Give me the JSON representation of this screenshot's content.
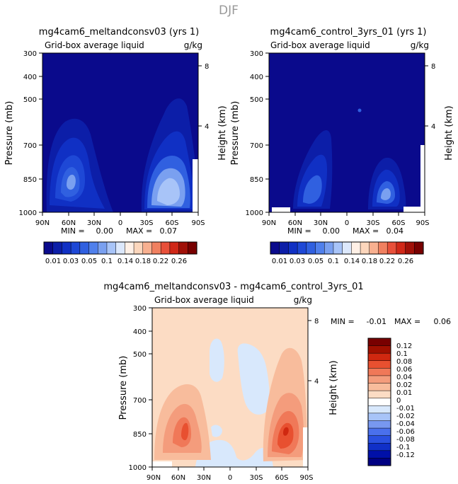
{
  "figure_title": "DJF",
  "colors": {
    "abs_fill": [
      "#0a0a8c",
      "#0c1ea8",
      "#1030c4",
      "#1e48d6",
      "#3060e0",
      "#5080ec",
      "#7aa0f0",
      "#a8c4f8",
      "#dce8fc",
      "#fff0e6",
      "#fcd6bc",
      "#f8b090",
      "#f08060",
      "#e8503a",
      "#d02818",
      "#a01008",
      "#780000"
    ],
    "diff_fill": [
      "#000082",
      "#0010a8",
      "#1030c8",
      "#2a50e0",
      "#4a70ec",
      "#7898f0",
      "#a8c4f8",
      "#d8e8fc",
      "#ffffff",
      "#fcdcc4",
      "#f8bc9c",
      "#f49c7c",
      "#f07858",
      "#e85030",
      "#d02810",
      "#a01000",
      "#780000"
    ]
  },
  "chart_data": [
    {
      "type": "contour",
      "title": "mg4cam6_meltandconsv03 (yrs 1)",
      "subtitle": "Grid-box average liquid",
      "units": "g/kg",
      "ylabel": "Pressure (mb)",
      "ylabel_right": "Height (km)",
      "x_ticks": [
        "90N",
        "60N",
        "30N",
        "0",
        "30S",
        "60S",
        "90S"
      ],
      "y_ticks": [
        "300",
        "400",
        "500",
        "700",
        "850",
        "1000"
      ],
      "right_ticks": [
        "8",
        "4"
      ],
      "min_label": "MIN =",
      "min_value": "0.00",
      "max_label": "MAX =",
      "max_value": "0.07",
      "colorbar_labels": [
        "0.01",
        "0.03",
        "0.05",
        "0.1",
        "0.14",
        "0.18",
        "0.22",
        "0.26"
      ]
    },
    {
      "type": "contour",
      "title": "mg4cam6_control_3yrs_01 (yrs 1)",
      "subtitle": "Grid-box average liquid",
      "units": "g/kg",
      "ylabel": "Pressure (mb)",
      "ylabel_right": "Height (km)",
      "x_ticks": [
        "90N",
        "60N",
        "30N",
        "0",
        "30S",
        "60S",
        "90S"
      ],
      "y_ticks": [
        "300",
        "400",
        "500",
        "700",
        "850",
        "1000"
      ],
      "right_ticks": [
        "8",
        "4"
      ],
      "min_label": "MIN =",
      "min_value": "0.00",
      "max_label": "MAX =",
      "max_value": "0.04",
      "colorbar_labels": [
        "0.01",
        "0.03",
        "0.05",
        "0.1",
        "0.14",
        "0.18",
        "0.22",
        "0.26"
      ]
    },
    {
      "type": "contour",
      "title": "mg4cam6_meltandconsv03 - mg4cam6_control_3yrs_01",
      "subtitle": "Grid-box average liquid",
      "units": "g/kg",
      "ylabel": "Pressure (mb)",
      "ylabel_right": "Height (km)",
      "x_ticks": [
        "90N",
        "60N",
        "30N",
        "0",
        "30S",
        "60S",
        "90S"
      ],
      "y_ticks": [
        "300",
        "400",
        "500",
        "700",
        "850",
        "1000"
      ],
      "right_ticks": [
        "8",
        "4"
      ],
      "min_label": "MIN =",
      "min_value": "-0.01",
      "max_label": "MAX =",
      "max_value": "0.06",
      "colorbar_labels": [
        "0.12",
        "0.1",
        "0.08",
        "0.06",
        "0.04",
        "0.02",
        "0.01",
        "0",
        "-0.01",
        "-0.02",
        "-0.04",
        "-0.06",
        "-0.08",
        "-0.1",
        "-0.12"
      ]
    }
  ]
}
